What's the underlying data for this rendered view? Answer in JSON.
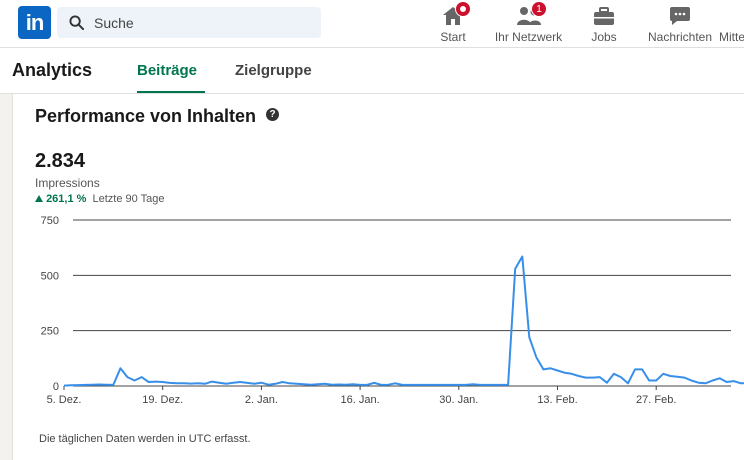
{
  "header": {
    "logo_text": "in",
    "search": {
      "placeholder": "Suche"
    },
    "nav": [
      {
        "label": "Start",
        "icon": "home-icon",
        "badge": ""
      },
      {
        "label": "Ihr Netzwerk",
        "icon": "people-icon",
        "badge": "1"
      },
      {
        "label": "Jobs",
        "icon": "briefcase-icon",
        "badge": ""
      },
      {
        "label": "Nachrichten",
        "icon": "message-icon",
        "badge": ""
      },
      {
        "label": "Mitte",
        "icon": "bell-icon",
        "badge": ""
      }
    ]
  },
  "subnav": {
    "title": "Analytics",
    "tabs": [
      {
        "label": "Beiträge",
        "active": true
      },
      {
        "label": "Zielgruppe",
        "active": false
      }
    ]
  },
  "card": {
    "title": "Performance von Inhalten",
    "value": "2.834",
    "metric": "Impressions",
    "change": "261,1 %",
    "period": "Letzte 90 Tage",
    "footnote": "Die täglichen Daten werden in UTC erfasst."
  },
  "colors": {
    "accent_green": "#01754f",
    "line_blue": "#378fe9",
    "brand_blue": "#0a66c2",
    "badge_red": "#cb112d"
  },
  "chart_data": {
    "type": "line",
    "title": "",
    "xlabel": "",
    "ylabel": "",
    "ylim": [
      0,
      750
    ],
    "yticks": [
      "750",
      "500",
      "250",
      "0"
    ],
    "xticks": [
      "5. Dez.",
      "19. Dez.",
      "2. Jan.",
      "16. Jan.",
      "30. Jan.",
      "13. Feb.",
      "27. Feb."
    ],
    "x_start": "5. Dez.",
    "grid": true,
    "series": [
      {
        "name": "",
        "values": [
          2,
          3,
          4,
          5,
          6,
          7,
          6,
          5,
          80,
          40,
          25,
          40,
          18,
          20,
          18,
          14,
          12,
          12,
          11,
          12,
          10,
          20,
          15,
          10,
          15,
          18,
          14,
          10,
          15,
          6,
          10,
          18,
          12,
          10,
          8,
          6,
          8,
          10,
          6,
          7,
          6,
          8,
          5,
          5,
          14,
          5,
          6,
          12,
          5,
          5,
          5,
          5,
          5,
          5,
          5,
          5,
          5,
          5,
          8,
          5,
          5,
          5,
          5,
          5,
          530,
          585,
          220,
          130,
          75,
          80,
          70,
          60,
          55,
          45,
          38,
          38,
          40,
          15,
          55,
          40,
          12,
          75,
          75,
          25,
          25,
          55,
          45,
          42,
          38,
          25,
          15,
          12,
          25,
          35,
          18,
          22,
          12,
          12,
          12,
          10,
          12,
          8,
          5
        ]
      }
    ]
  }
}
